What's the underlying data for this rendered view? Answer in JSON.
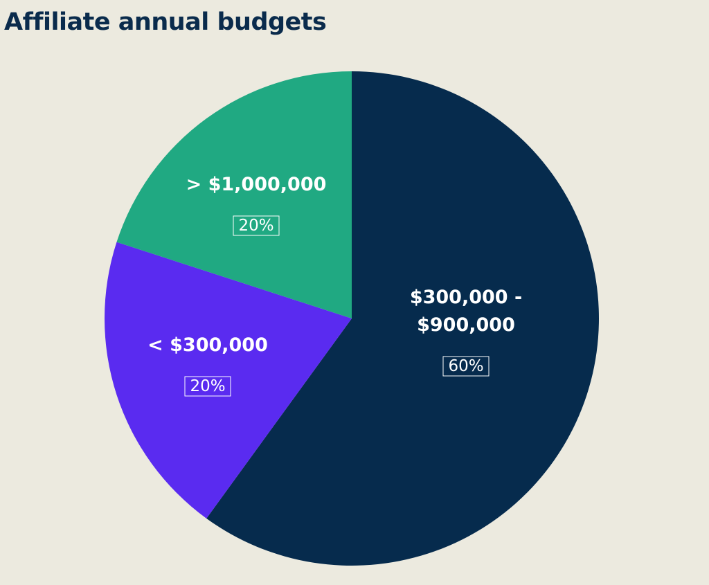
{
  "chart_data": {
    "type": "pie",
    "title": "Affiliate annual budgets",
    "slices": [
      {
        "label": "$300,000 -\n$900,000",
        "value": 60,
        "value_label": "60%",
        "color": "#062b4d"
      },
      {
        "label": "< $300,000",
        "value": 20,
        "value_label": "20%",
        "color": "#5a2bf0"
      },
      {
        "label": "> $1,000,000",
        "value": 20,
        "value_label": "20%",
        "color": "#20a982"
      }
    ],
    "start_angle": "12 o'clock",
    "direction": "clockwise",
    "background": "#eceadf",
    "title_color": "#0a2b4c"
  }
}
